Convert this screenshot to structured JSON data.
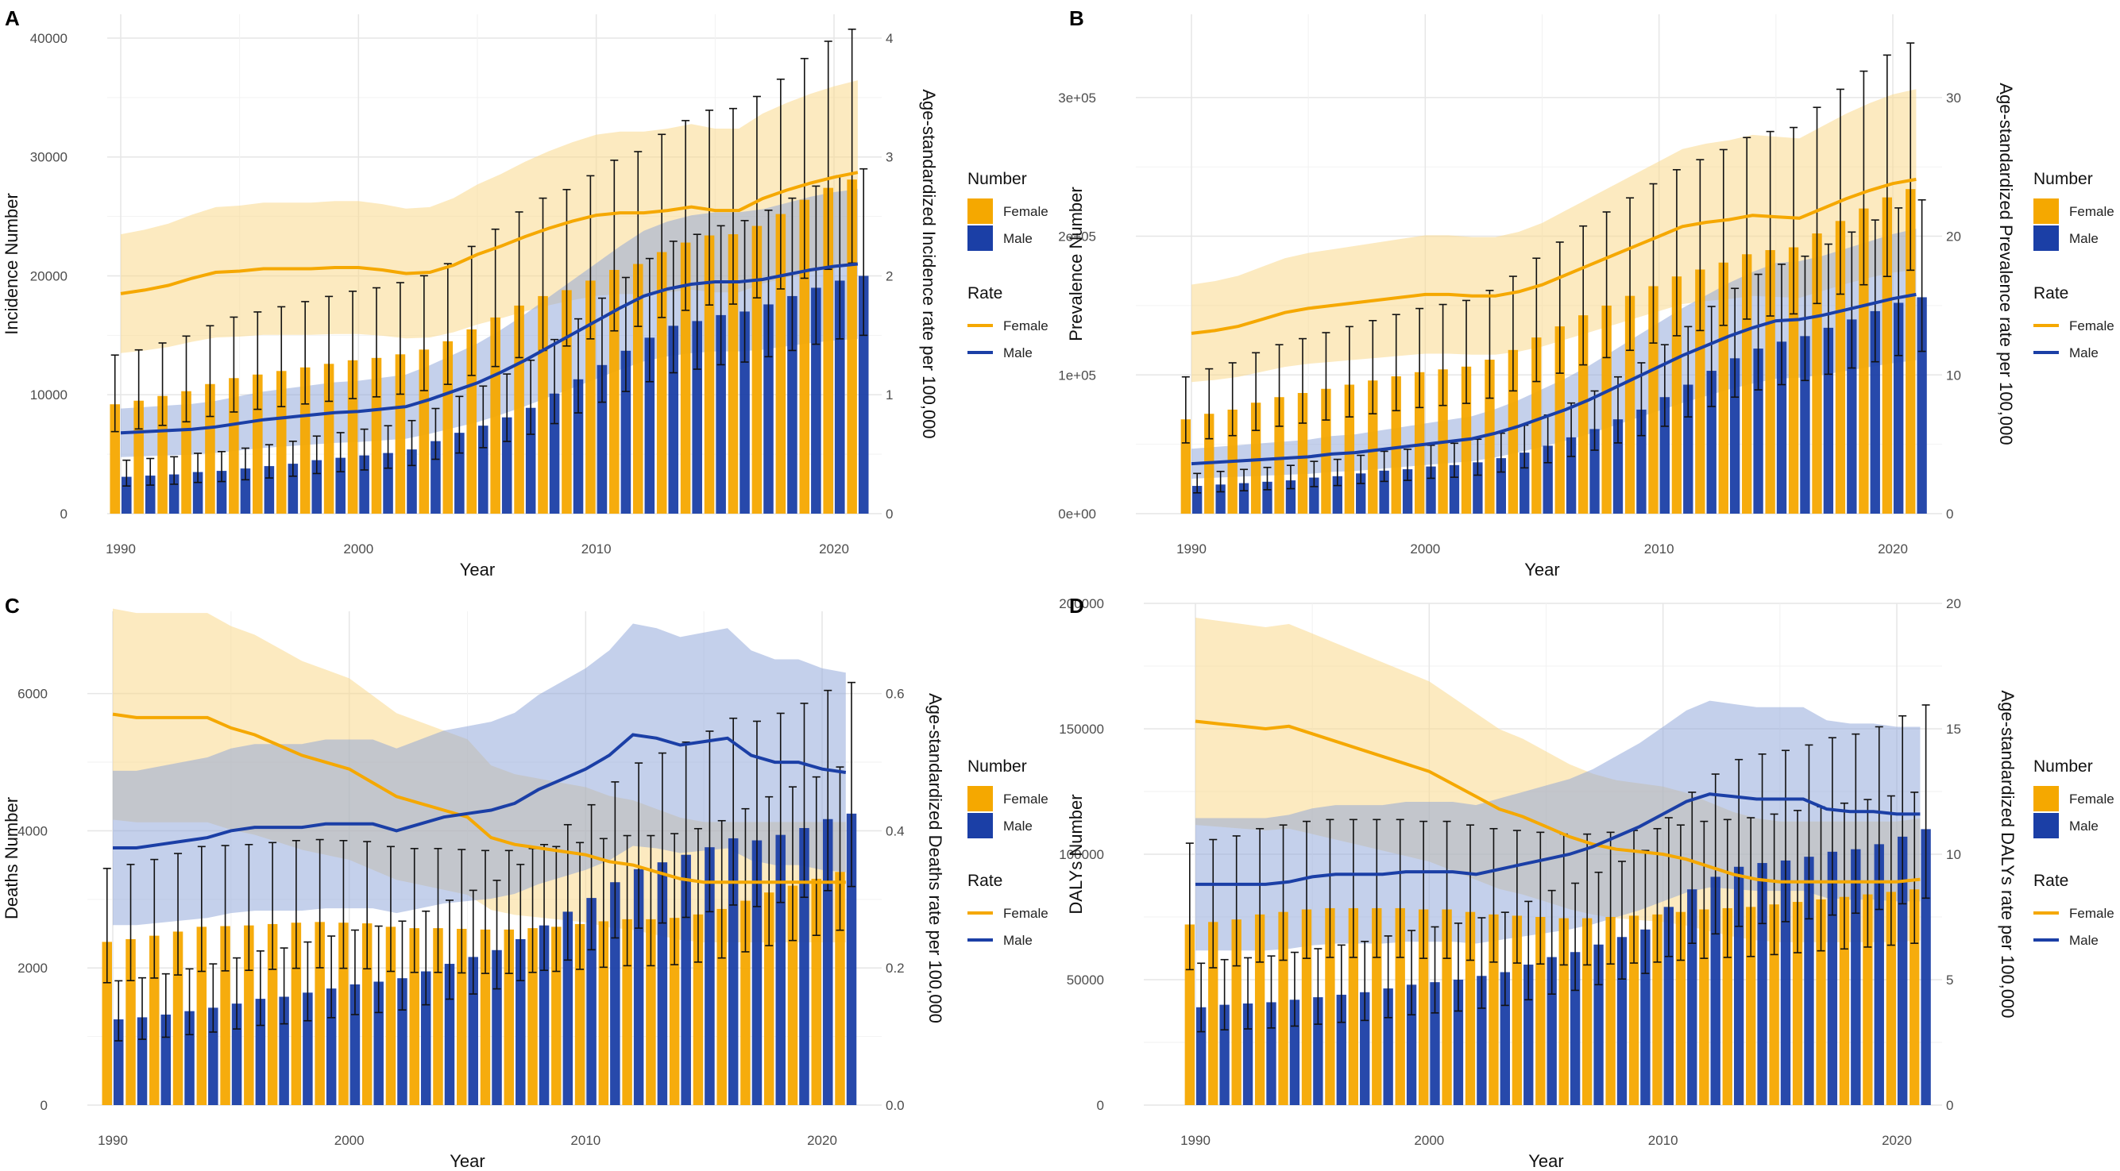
{
  "colors": {
    "female": "#F5A800",
    "male": "#1B3FA6",
    "female_band": "#F9D98C",
    "male_band": "#8AA2D8",
    "error_bar": "#111111",
    "grid": "#E6E6E6"
  },
  "legend": {
    "number_title": "Number",
    "rate_title": "Rate",
    "female": "Female",
    "male": "Male"
  },
  "chart_data": [
    {
      "panel": "A",
      "type": "bar+line",
      "xlabel": "Year",
      "ylabel_left": "Incidence Number",
      "ylabel_right": "Age-standardized Incidence rate per 100,000",
      "x_ticks": [
        "1990",
        "2000",
        "2010",
        "2020"
      ],
      "y_left_ticks": [
        "0",
        "10000",
        "20000",
        "30000",
        "40000"
      ],
      "y_right_ticks": [
        "0",
        "1",
        "2",
        "3",
        "4"
      ],
      "ylim_left": [
        0,
        42000
      ],
      "ylim_right": [
        0,
        4.2
      ],
      "years": [
        1990,
        1991,
        1992,
        1993,
        1994,
        1995,
        1996,
        1997,
        1998,
        1999,
        2000,
        2001,
        2002,
        2003,
        2004,
        2005,
        2006,
        2007,
        2008,
        2009,
        2010,
        2011,
        2012,
        2013,
        2014,
        2015,
        2016,
        2017,
        2018,
        2019,
        2020,
        2021
      ],
      "number_female": [
        9200,
        9500,
        9900,
        10300,
        10900,
        11400,
        11700,
        12000,
        12300,
        12600,
        12900,
        13100,
        13400,
        13800,
        14500,
        15500,
        16500,
        17500,
        18300,
        18800,
        19600,
        20500,
        21000,
        22000,
        22800,
        23400,
        23500,
        24200,
        25200,
        26400,
        27400,
        28100
      ],
      "number_male": [
        3100,
        3200,
        3300,
        3500,
        3600,
        3800,
        4000,
        4200,
        4500,
        4700,
        4900,
        5100,
        5400,
        6100,
        6800,
        7400,
        8100,
        8900,
        10100,
        11300,
        12500,
        13700,
        14800,
        15800,
        16200,
        16700,
        17000,
        17600,
        18300,
        19000,
        19600,
        20000
      ],
      "rate_female": [
        1.85,
        1.88,
        1.92,
        1.98,
        2.03,
        2.04,
        2.06,
        2.06,
        2.06,
        2.07,
        2.07,
        2.05,
        2.02,
        2.03,
        2.09,
        2.18,
        2.25,
        2.33,
        2.4,
        2.46,
        2.51,
        2.53,
        2.53,
        2.55,
        2.58,
        2.55,
        2.55,
        2.65,
        2.72,
        2.78,
        2.83,
        2.87
      ],
      "rate_male": [
        0.68,
        0.69,
        0.7,
        0.71,
        0.73,
        0.76,
        0.79,
        0.81,
        0.83,
        0.85,
        0.86,
        0.88,
        0.9,
        0.96,
        1.03,
        1.1,
        1.19,
        1.29,
        1.4,
        1.51,
        1.62,
        1.73,
        1.83,
        1.89,
        1.93,
        1.95,
        1.95,
        1.97,
        2.01,
        2.05,
        2.08,
        2.1
      ]
    },
    {
      "panel": "B",
      "type": "bar+line",
      "xlabel": "Year",
      "ylabel_left": "Prevalence Number",
      "ylabel_right": "Age-standardized Prevalence rate per 100,000",
      "x_ticks": [
        "1990",
        "2000",
        "2010",
        "2020"
      ],
      "y_left_ticks": [
        "0e+00",
        "1e+05",
        "2e+05",
        "3e+05"
      ],
      "y_right_ticks": [
        "0",
        "10",
        "20",
        "30"
      ],
      "ylim_left": [
        0,
        360000
      ],
      "ylim_right": [
        0,
        36
      ],
      "years": [
        1990,
        1991,
        1992,
        1993,
        1994,
        1995,
        1996,
        1997,
        1998,
        1999,
        2000,
        2001,
        2002,
        2003,
        2004,
        2005,
        2006,
        2007,
        2008,
        2009,
        2010,
        2011,
        2012,
        2013,
        2014,
        2015,
        2016,
        2017,
        2018,
        2019,
        2020,
        2021
      ],
      "number_female": [
        68000,
        72000,
        75000,
        80000,
        84000,
        87000,
        90000,
        93000,
        96000,
        99000,
        102000,
        104000,
        106000,
        111000,
        118000,
        127000,
        135000,
        143000,
        150000,
        157000,
        164000,
        171000,
        176000,
        181000,
        187000,
        190000,
        192000,
        202000,
        211000,
        220000,
        228000,
        234000
      ],
      "number_male": [
        20000,
        21000,
        22000,
        23000,
        24000,
        26000,
        27000,
        29000,
        31000,
        32000,
        34000,
        35000,
        37000,
        40000,
        44000,
        49000,
        55000,
        61000,
        68000,
        75000,
        84000,
        93000,
        103000,
        112000,
        119000,
        124000,
        128000,
        134000,
        140000,
        146000,
        152000,
        156000
      ],
      "rate_female": [
        13.0,
        13.2,
        13.5,
        14.0,
        14.5,
        14.8,
        15.0,
        15.2,
        15.4,
        15.6,
        15.8,
        15.8,
        15.7,
        15.7,
        16.0,
        16.5,
        17.2,
        17.9,
        18.6,
        19.3,
        20.0,
        20.7,
        21.0,
        21.2,
        21.5,
        21.4,
        21.3,
        22.0,
        22.7,
        23.3,
        23.8,
        24.1
      ],
      "rate_male": [
        3.6,
        3.7,
        3.8,
        3.9,
        4.0,
        4.1,
        4.3,
        4.4,
        4.6,
        4.8,
        5.0,
        5.2,
        5.4,
        5.8,
        6.3,
        6.9,
        7.5,
        8.2,
        9.0,
        9.8,
        10.6,
        11.4,
        12.1,
        12.8,
        13.4,
        13.9,
        14.0,
        14.3,
        14.7,
        15.1,
        15.5,
        15.8
      ]
    },
    {
      "panel": "C",
      "type": "bar+line",
      "xlabel": "Year",
      "ylabel_left": "Deaths Number",
      "ylabel_right": "Age-standardized Deaths rate per 100,000",
      "x_ticks": [
        "1990",
        "2000",
        "2010",
        "2020"
      ],
      "y_left_ticks": [
        "0",
        "2000",
        "4000",
        "6000"
      ],
      "y_right_ticks": [
        "0.0",
        "0.2",
        "0.4",
        "0.6"
      ],
      "ylim_left": [
        0,
        7200
      ],
      "ylim_right": [
        0,
        0.72
      ],
      "years": [
        1990,
        1991,
        1992,
        1993,
        1994,
        1995,
        1996,
        1997,
        1998,
        1999,
        2000,
        2001,
        2002,
        2003,
        2004,
        2005,
        2006,
        2007,
        2008,
        2009,
        2010,
        2011,
        2012,
        2013,
        2014,
        2015,
        2016,
        2017,
        2018,
        2019,
        2020,
        2021
      ],
      "number_female": [
        2380,
        2420,
        2470,
        2530,
        2600,
        2610,
        2620,
        2640,
        2660,
        2670,
        2660,
        2650,
        2600,
        2580,
        2580,
        2570,
        2560,
        2560,
        2580,
        2600,
        2640,
        2680,
        2710,
        2710,
        2730,
        2780,
        2860,
        2980,
        3100,
        3200,
        3300,
        3400
      ],
      "number_male": [
        1250,
        1280,
        1320,
        1370,
        1420,
        1480,
        1550,
        1580,
        1640,
        1700,
        1760,
        1800,
        1850,
        1950,
        2060,
        2160,
        2260,
        2420,
        2620,
        2820,
        3020,
        3250,
        3440,
        3540,
        3650,
        3760,
        3890,
        3860,
        3940,
        4040,
        4170,
        4250
      ],
      "rate_female": [
        0.57,
        0.565,
        0.565,
        0.565,
        0.565,
        0.55,
        0.54,
        0.525,
        0.51,
        0.5,
        0.49,
        0.47,
        0.45,
        0.44,
        0.43,
        0.42,
        0.39,
        0.38,
        0.375,
        0.37,
        0.365,
        0.355,
        0.35,
        0.34,
        0.33,
        0.325,
        0.325,
        0.325,
        0.325,
        0.325,
        0.325,
        0.325
      ],
      "rate_male": [
        0.375,
        0.375,
        0.38,
        0.385,
        0.39,
        0.4,
        0.405,
        0.405,
        0.405,
        0.41,
        0.41,
        0.41,
        0.4,
        0.41,
        0.42,
        0.425,
        0.43,
        0.44,
        0.46,
        0.475,
        0.49,
        0.51,
        0.54,
        0.535,
        0.525,
        0.53,
        0.535,
        0.51,
        0.5,
        0.5,
        0.49,
        0.485
      ]
    },
    {
      "panel": "D",
      "type": "bar+line",
      "xlabel": "Year",
      "ylabel_left": "DALYs Number",
      "ylabel_right": "Age-standardized DALYs rate per 100,000",
      "x_ticks": [
        "1990",
        "2000",
        "2010",
        "2020"
      ],
      "y_left_ticks": [
        "0",
        "50000",
        "100000",
        "150000",
        "200000"
      ],
      "y_right_ticks": [
        "0",
        "5",
        "10",
        "15",
        "20"
      ],
      "ylim_left": [
        0,
        200000
      ],
      "ylim_right": [
        0,
        20
      ],
      "years": [
        1990,
        1991,
        1992,
        1993,
        1994,
        1995,
        1996,
        1997,
        1998,
        1999,
        2000,
        2001,
        2002,
        2003,
        2004,
        2005,
        2006,
        2007,
        2008,
        2009,
        2010,
        2011,
        2012,
        2013,
        2014,
        2015,
        2016,
        2017,
        2018,
        2019,
        2020,
        2021
      ],
      "number_female": [
        72000,
        73000,
        74000,
        76000,
        77000,
        78000,
        78500,
        78500,
        78500,
        78500,
        78000,
        78000,
        77000,
        76000,
        75500,
        75000,
        74500,
        74500,
        75000,
        75500,
        76000,
        77000,
        78000,
        78500,
        79000,
        80000,
        81000,
        82000,
        83000,
        84000,
        85000,
        86000
      ],
      "number_male": [
        39000,
        40000,
        40500,
        41000,
        42000,
        43000,
        44000,
        45000,
        46500,
        48000,
        49000,
        50000,
        51500,
        53000,
        56000,
        59000,
        61000,
        64000,
        67000,
        70000,
        79000,
        86000,
        91000,
        95000,
        96500,
        97500,
        99000,
        101000,
        102000,
        104000,
        107000,
        110000
      ],
      "rate_female": [
        15.3,
        15.2,
        15.1,
        15.0,
        15.1,
        14.8,
        14.5,
        14.2,
        13.9,
        13.6,
        13.3,
        12.8,
        12.3,
        11.8,
        11.5,
        11.1,
        10.7,
        10.4,
        10.2,
        10.1,
        10.0,
        9.8,
        9.5,
        9.2,
        9.0,
        8.9,
        8.9,
        8.9,
        8.9,
        8.9,
        8.9,
        9.0
      ],
      "rate_male": [
        8.8,
        8.8,
        8.8,
        8.8,
        8.9,
        9.1,
        9.2,
        9.2,
        9.2,
        9.3,
        9.3,
        9.3,
        9.2,
        9.4,
        9.6,
        9.8,
        10.0,
        10.3,
        10.7,
        11.1,
        11.6,
        12.1,
        12.4,
        12.3,
        12.2,
        12.2,
        12.2,
        11.8,
        11.7,
        11.7,
        11.6,
        11.6
      ]
    }
  ]
}
